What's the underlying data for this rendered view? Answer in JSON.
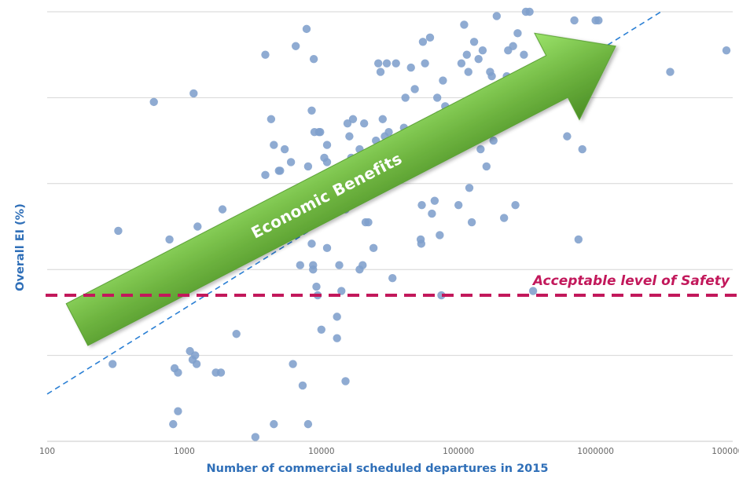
{
  "chart_data": {
    "type": "scatter",
    "title": "",
    "xlabel": "Number of commercial scheduled departures in 2015",
    "ylabel": "Overall EI (%)",
    "x_scale": "log",
    "xlim": [
      100,
      10000000
    ],
    "x_ticks": [
      "100",
      "1000",
      "10000",
      "100000",
      "1000000",
      "10000000"
    ],
    "grid": "horizontal",
    "grid_fraction": [
      0.0,
      0.2,
      0.4,
      0.6,
      0.8,
      1.0
    ],
    "marker_color": "#7f9fcc",
    "note": "y-axis has no tick labels; y values are given as fraction of plot height (0 = bottom axis, 1 = top)",
    "points": [
      [
        300,
        0.18
      ],
      [
        330,
        0.49
      ],
      [
        600,
        0.79
      ],
      [
        780,
        0.47
      ],
      [
        830,
        0.04
      ],
      [
        850,
        0.17
      ],
      [
        900,
        0.07
      ],
      [
        900,
        0.16
      ],
      [
        1000,
        0.38
      ],
      [
        1100,
        0.21
      ],
      [
        1150,
        0.19
      ],
      [
        1170,
        0.81
      ],
      [
        1200,
        0.2
      ],
      [
        1230,
        0.18
      ],
      [
        1250,
        0.5
      ],
      [
        1700,
        0.16
      ],
      [
        1850,
        0.16
      ],
      [
        1900,
        0.54
      ],
      [
        2400,
        0.25
      ],
      [
        2600,
        0.5
      ],
      [
        3300,
        0.01
      ],
      [
        3500,
        0.49
      ],
      [
        3900,
        0.62
      ],
      [
        3900,
        0.9
      ],
      [
        4300,
        0.75
      ],
      [
        4500,
        0.69
      ],
      [
        4500,
        0.04
      ],
      [
        4900,
        0.63
      ],
      [
        5000,
        0.63
      ],
      [
        5400,
        0.68
      ],
      [
        6000,
        0.65
      ],
      [
        6200,
        0.18
      ],
      [
        6500,
        0.92
      ],
      [
        7000,
        0.41
      ],
      [
        7300,
        0.13
      ],
      [
        7800,
        0.96
      ],
      [
        8000,
        0.04
      ],
      [
        8000,
        0.64
      ],
      [
        8500,
        0.77
      ],
      [
        8500,
        0.46
      ],
      [
        8700,
        0.41
      ],
      [
        8700,
        0.4
      ],
      [
        8800,
        0.89
      ],
      [
        8900,
        0.72
      ],
      [
        9200,
        0.36
      ],
      [
        9400,
        0.34
      ],
      [
        9600,
        0.72
      ],
      [
        9800,
        0.72
      ],
      [
        10000,
        0.26
      ],
      [
        10500,
        0.66
      ],
      [
        11000,
        0.65
      ],
      [
        11000,
        0.69
      ],
      [
        11000,
        0.45
      ],
      [
        13000,
        0.29
      ],
      [
        13000,
        0.24
      ],
      [
        13500,
        0.41
      ],
      [
        14000,
        0.35
      ],
      [
        15000,
        0.54
      ],
      [
        15000,
        0.14
      ],
      [
        15500,
        0.74
      ],
      [
        15500,
        0.56
      ],
      [
        16000,
        0.71
      ],
      [
        16500,
        0.66
      ],
      [
        17000,
        0.75
      ],
      [
        19000,
        0.68
      ],
      [
        19000,
        0.4
      ],
      [
        20000,
        0.41
      ],
      [
        20500,
        0.74
      ],
      [
        21000,
        0.51
      ],
      [
        22000,
        0.51
      ],
      [
        24000,
        0.45
      ],
      [
        25000,
        0.7
      ],
      [
        26000,
        0.88
      ],
      [
        27000,
        0.86
      ],
      [
        28000,
        0.75
      ],
      [
        29000,
        0.71
      ],
      [
        30000,
        0.88
      ],
      [
        31000,
        0.72
      ],
      [
        32000,
        0.69
      ],
      [
        33000,
        0.38
      ],
      [
        35000,
        0.88
      ],
      [
        40000,
        0.73
      ],
      [
        41000,
        0.8
      ],
      [
        45000,
        0.87
      ],
      [
        48000,
        0.82
      ],
      [
        50000,
        0.63
      ],
      [
        53000,
        0.47
      ],
      [
        53500,
        0.46
      ],
      [
        54000,
        0.55
      ],
      [
        55000,
        0.93
      ],
      [
        57000,
        0.88
      ],
      [
        58000,
        0.69
      ],
      [
        62000,
        0.94
      ],
      [
        64000,
        0.53
      ],
      [
        65000,
        0.7
      ],
      [
        67000,
        0.56
      ],
      [
        70000,
        0.8
      ],
      [
        72000,
        0.76
      ],
      [
        73000,
        0.48
      ],
      [
        75000,
        0.34
      ],
      [
        77000,
        0.84
      ],
      [
        80000,
        0.78
      ],
      [
        100000,
        0.55
      ],
      [
        105000,
        0.88
      ],
      [
        110000,
        0.97
      ],
      [
        115000,
        0.9
      ],
      [
        118000,
        0.86
      ],
      [
        120000,
        0.59
      ],
      [
        125000,
        0.51
      ],
      [
        130000,
        0.93
      ],
      [
        140000,
        0.89
      ],
      [
        145000,
        0.68
      ],
      [
        150000,
        0.91
      ],
      [
        160000,
        0.64
      ],
      [
        170000,
        0.86
      ],
      [
        175000,
        0.85
      ],
      [
        180000,
        0.7
      ],
      [
        190000,
        0.99
      ],
      [
        215000,
        0.52
      ],
      [
        225000,
        0.85
      ],
      [
        230000,
        0.91
      ],
      [
        250000,
        0.92
      ],
      [
        260000,
        0.55
      ],
      [
        270000,
        0.95
      ],
      [
        300000,
        0.9
      ],
      [
        310000,
        1.0
      ],
      [
        330000,
        1.0
      ],
      [
        350000,
        0.35
      ],
      [
        420000,
        0.93
      ],
      [
        620000,
        0.71
      ],
      [
        700000,
        0.98
      ],
      [
        750000,
        0.47
      ],
      [
        800000,
        0.68
      ],
      [
        1000000,
        0.98
      ],
      [
        1050000,
        0.98
      ],
      [
        3500000,
        0.86
      ],
      [
        9000000,
        0.91
      ]
    ],
    "trendline": {
      "style": "dashed",
      "color": "#2a7fd4",
      "start": [
        100,
        0.11
      ],
      "end": [
        3000000,
        1.0
      ]
    },
    "annotations": [
      {
        "type": "arrow",
        "text": "Economic Benefits",
        "color": "#6db33f",
        "from": [
          100,
          0.29
        ],
        "to": [
          1400000,
          0.92
        ]
      },
      {
        "type": "hline",
        "text": "Acceptable level of Safety",
        "color": "#c2185b",
        "y": 0.34
      }
    ]
  }
}
